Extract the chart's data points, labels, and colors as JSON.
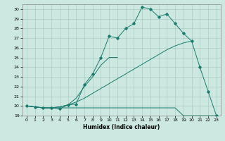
{
  "title": "",
  "xlabel": "Humidex (Indice chaleur)",
  "background_color": "#cce8e0",
  "grid_color": "#aaccc4",
  "line_color": "#1a7a6e",
  "xlim": [
    -0.5,
    23.5
  ],
  "ylim": [
    19,
    30.5
  ],
  "yticks": [
    19,
    20,
    21,
    22,
    23,
    24,
    25,
    26,
    27,
    28,
    29,
    30
  ],
  "xticks": [
    0,
    1,
    2,
    3,
    4,
    5,
    6,
    7,
    8,
    9,
    10,
    11,
    12,
    13,
    14,
    15,
    16,
    17,
    18,
    19,
    20,
    21,
    22,
    23
  ],
  "series1_x": [
    0,
    1,
    2,
    3,
    4,
    5,
    6,
    7,
    8,
    9,
    10,
    11,
    12,
    13,
    14,
    15,
    16,
    17,
    18,
    19,
    20,
    21,
    22,
    23
  ],
  "series1_y": [
    20,
    19.9,
    19.8,
    19.8,
    19.8,
    19.8,
    19.8,
    19.8,
    19.8,
    19.8,
    19.8,
    19.8,
    19.8,
    19.8,
    19.8,
    19.8,
    19.8,
    19.8,
    19.8,
    19.0,
    19.0,
    19.0,
    19.0,
    19.0
  ],
  "series2_x": [
    0,
    1,
    2,
    3,
    4,
    5,
    6,
    7,
    8,
    9,
    10,
    11,
    12,
    13,
    14,
    15,
    16,
    17,
    18,
    19,
    20
  ],
  "series2_y": [
    20,
    19.9,
    19.8,
    19.8,
    19.9,
    20.1,
    20.4,
    20.8,
    21.3,
    21.8,
    22.3,
    22.8,
    23.3,
    23.8,
    24.3,
    24.8,
    25.3,
    25.8,
    26.2,
    26.5,
    26.7
  ],
  "series3_x": [
    0,
    1,
    2,
    3,
    4,
    5,
    6,
    7,
    8,
    9,
    10,
    11
  ],
  "series3_y": [
    20,
    19.9,
    19.8,
    19.8,
    19.9,
    20.1,
    20.8,
    22.0,
    23.0,
    24.2,
    25.0,
    25.0
  ],
  "series4_x": [
    0,
    1,
    2,
    3,
    4,
    5,
    6,
    7,
    8,
    9,
    10,
    11,
    12,
    13,
    14,
    15,
    16,
    17,
    18,
    19,
    20,
    21,
    22,
    23
  ],
  "series4_y": [
    20,
    19.9,
    19.8,
    19.8,
    19.7,
    20.1,
    20.2,
    22.2,
    23.3,
    25.0,
    27.2,
    27.0,
    28.0,
    28.5,
    30.2,
    30.0,
    29.2,
    29.5,
    28.5,
    27.5,
    26.7,
    24.0,
    21.5,
    19.0
  ]
}
